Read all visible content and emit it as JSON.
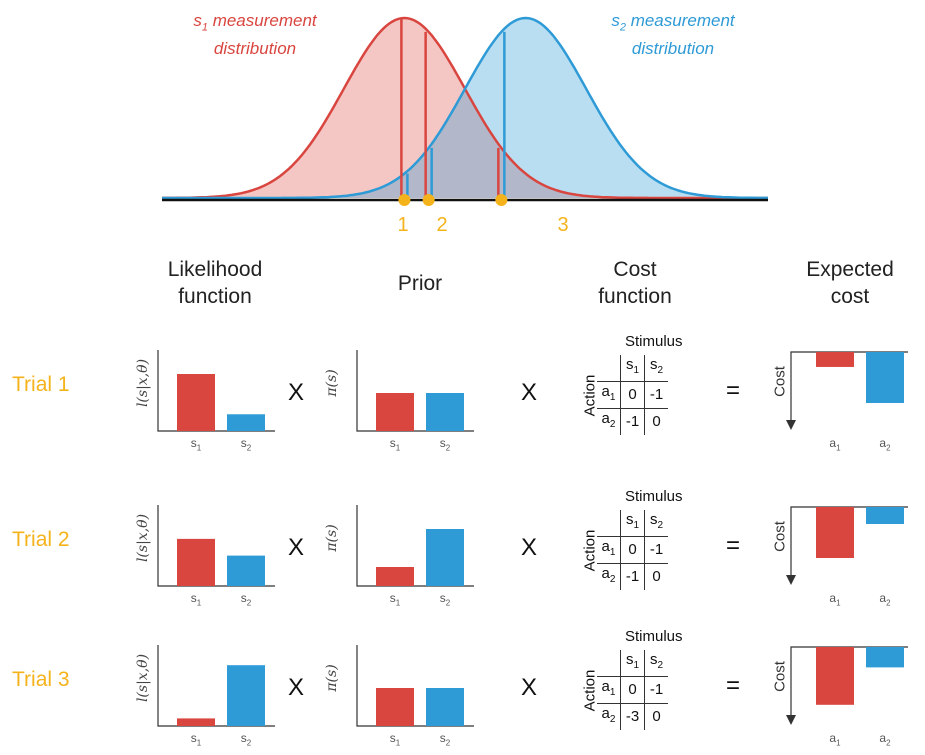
{
  "colors": {
    "s1": "#d9453f",
    "s2": "#2e9ad6",
    "accent": "#f5b31b",
    "axis": "#333333"
  },
  "top": {
    "s1_label_line1": "s",
    "s1_label_sub": "1",
    "s1_label_rest": " measurement",
    "s1_label_line2": "distribution",
    "s2_label_line1": "s",
    "s2_label_sub": "2",
    "s2_label_rest": " measurement",
    "s2_label_line2": "distribution",
    "markers": [
      "1",
      "2",
      "3"
    ]
  },
  "columns": {
    "likelihood": [
      "Likelihood",
      "function"
    ],
    "prior": "Prior",
    "cost": [
      "Cost",
      "function"
    ],
    "expected": [
      "Expected",
      "cost"
    ]
  },
  "axis_labels": {
    "likelihood_y": "l(s|x,θ)",
    "prior_y": "π(s)",
    "expected_y": "Cost",
    "stimulus": "Stimulus",
    "action": "Action",
    "s1": "s",
    "s2": "s",
    "a1": "a",
    "a2": "a",
    "sub1": "1",
    "sub2": "2"
  },
  "ops": {
    "times": "X",
    "equals": "="
  },
  "trials": [
    {
      "label": "Trial 1",
      "likelihood": [
        0.75,
        0.22
      ],
      "prior": [
        0.5,
        0.5
      ],
      "cost": [
        [
          "0",
          "-1"
        ],
        [
          "-1",
          "0"
        ]
      ],
      "expected": [
        -0.22,
        -0.75
      ]
    },
    {
      "label": "Trial 2",
      "likelihood": [
        0.62,
        0.4
      ],
      "prior": [
        0.25,
        0.75
      ],
      "cost": [
        [
          "0",
          "-1"
        ],
        [
          "-1",
          "0"
        ]
      ],
      "expected": [
        -0.75,
        -0.25
      ]
    },
    {
      "label": "Trial 3",
      "likelihood": [
        0.1,
        0.8
      ],
      "prior": [
        0.5,
        0.5
      ],
      "cost": [
        [
          "0",
          "-1"
        ],
        [
          "-3",
          "0"
        ]
      ],
      "expected": [
        -0.85,
        -0.3
      ]
    }
  ],
  "chart_data": {
    "type": "area",
    "series": [
      {
        "name": "s1 measurement distribution",
        "mean": 0.4,
        "sd": 0.1
      },
      {
        "name": "s2 measurement distribution",
        "mean": 0.6,
        "sd": 0.1
      }
    ],
    "markers": [
      {
        "label": "1",
        "x": 0.4
      },
      {
        "label": "2",
        "x": 0.44
      },
      {
        "label": "3",
        "x": 0.56
      }
    ]
  }
}
